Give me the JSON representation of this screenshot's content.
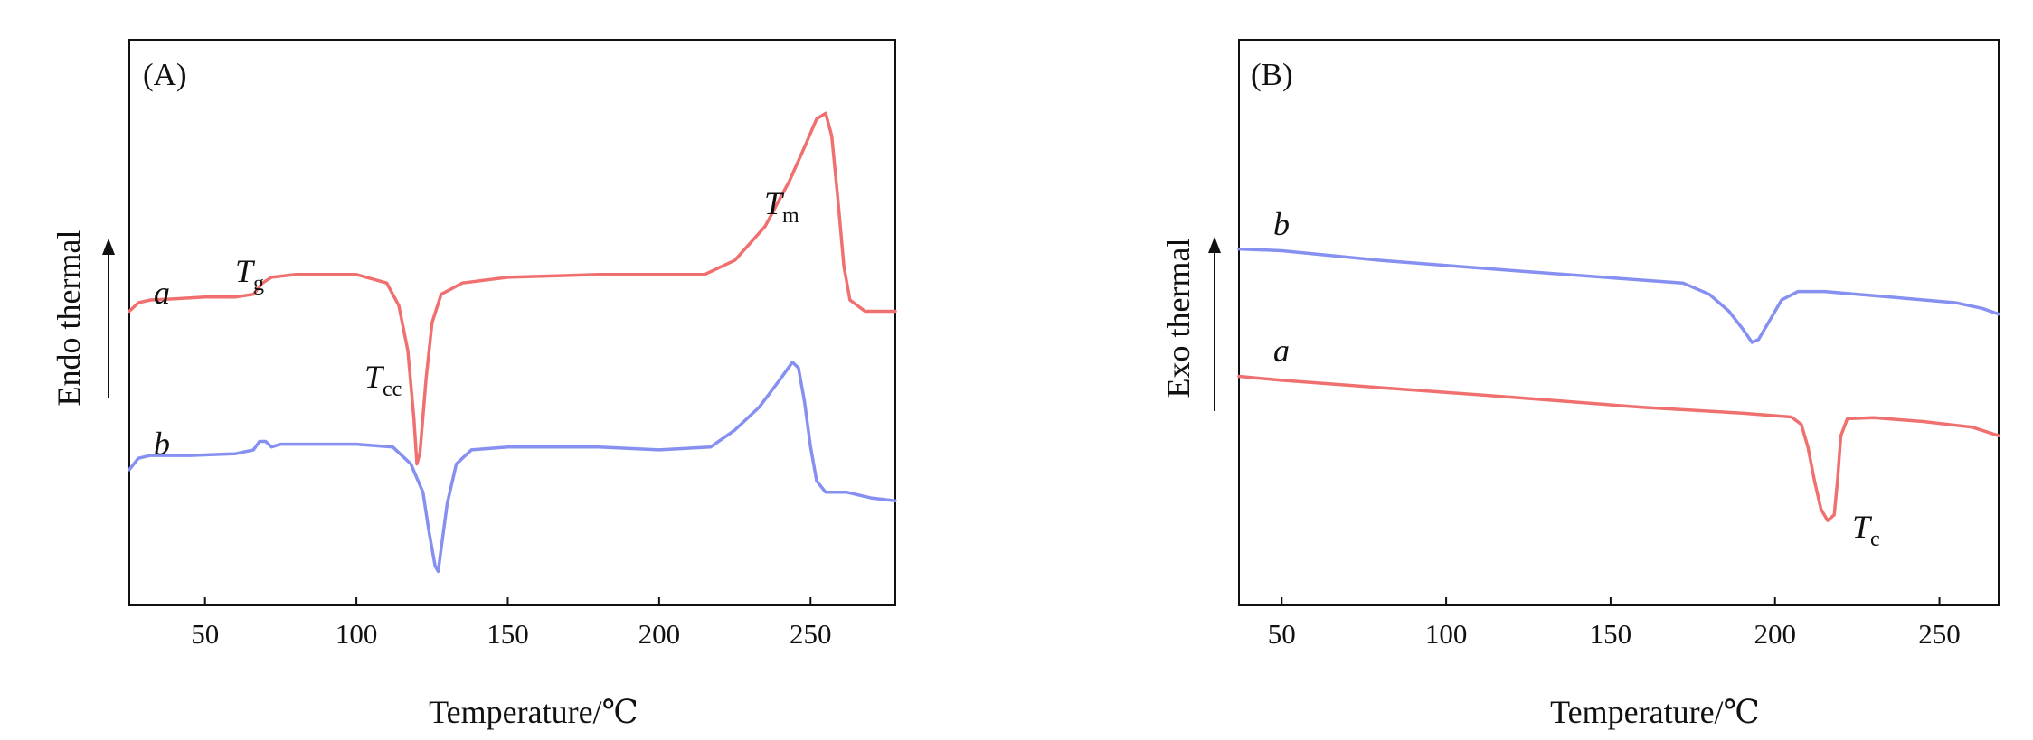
{
  "chart_data": [
    {
      "type": "line",
      "panel_label": "(A)",
      "xlabel": "Temperature/℃",
      "ylabel": "Endo thermal",
      "xlim": [
        25,
        278
      ],
      "x_ticks": [
        "50",
        "100",
        "150",
        "200",
        "250"
      ],
      "y_ticks": "none",
      "grid": false,
      "series": [
        {
          "name": "a",
          "color": "#f07070",
          "points": [
            [
              25,
              0.52
            ],
            [
              28,
              0.535
            ],
            [
              32,
              0.54
            ],
            [
              40,
              0.542
            ],
            [
              50,
              0.545
            ],
            [
              60,
              0.545
            ],
            [
              66,
              0.55
            ],
            [
              69,
              0.57
            ],
            [
              72,
              0.58
            ],
            [
              80,
              0.585
            ],
            [
              100,
              0.585
            ],
            [
              110,
              0.57
            ],
            [
              114,
              0.53
            ],
            [
              117,
              0.45
            ],
            [
              119,
              0.33
            ],
            [
              120,
              0.25
            ],
            [
              121,
              0.27
            ],
            [
              123,
              0.4
            ],
            [
              125,
              0.5
            ],
            [
              128,
              0.55
            ],
            [
              135,
              0.57
            ],
            [
              150,
              0.58
            ],
            [
              180,
              0.585
            ],
            [
              200,
              0.585
            ],
            [
              215,
              0.585
            ],
            [
              225,
              0.61
            ],
            [
              235,
              0.67
            ],
            [
              243,
              0.75
            ],
            [
              248,
              0.81
            ],
            [
              252,
              0.86
            ],
            [
              255,
              0.87
            ],
            [
              257,
              0.83
            ],
            [
              259,
              0.72
            ],
            [
              261,
              0.6
            ],
            [
              263,
              0.54
            ],
            [
              268,
              0.52
            ],
            [
              278,
              0.52
            ]
          ]
        },
        {
          "name": "b",
          "color": "#8590f0",
          "points": [
            [
              25,
              0.24
            ],
            [
              28,
              0.26
            ],
            [
              32,
              0.265
            ],
            [
              45,
              0.265
            ],
            [
              60,
              0.268
            ],
            [
              66,
              0.275
            ],
            [
              68,
              0.29
            ],
            [
              70,
              0.29
            ],
            [
              72,
              0.28
            ],
            [
              75,
              0.285
            ],
            [
              100,
              0.285
            ],
            [
              112,
              0.28
            ],
            [
              118,
              0.25
            ],
            [
              122,
              0.2
            ],
            [
              124,
              0.13
            ],
            [
              126,
              0.07
            ],
            [
              127,
              0.06
            ],
            [
              128,
              0.1
            ],
            [
              130,
              0.18
            ],
            [
              133,
              0.25
            ],
            [
              138,
              0.275
            ],
            [
              150,
              0.28
            ],
            [
              180,
              0.28
            ],
            [
              200,
              0.275
            ],
            [
              217,
              0.28
            ],
            [
              225,
              0.31
            ],
            [
              233,
              0.35
            ],
            [
              240,
              0.4
            ],
            [
              244,
              0.43
            ],
            [
              246,
              0.42
            ],
            [
              248,
              0.36
            ],
            [
              250,
              0.28
            ],
            [
              252,
              0.22
            ],
            [
              255,
              0.2
            ],
            [
              262,
              0.2
            ],
            [
              270,
              0.19
            ],
            [
              278,
              0.185
            ]
          ]
        }
      ],
      "annotations": [
        {
          "main": "T",
          "sub": "g"
        },
        {
          "main": "T",
          "sub": "cc"
        },
        {
          "main": "T",
          "sub": "m"
        }
      ]
    },
    {
      "type": "line",
      "panel_label": "(B)",
      "xlabel": "Temperature/℃",
      "ylabel": "Exo thermal",
      "xlim": [
        37,
        268
      ],
      "x_ticks": [
        "50",
        "100",
        "150",
        "200",
        "250"
      ],
      "y_ticks": "none",
      "grid": false,
      "series": [
        {
          "name": "b",
          "color": "#8590f0",
          "points": [
            [
              37,
              0.63
            ],
            [
              50,
              0.627
            ],
            [
              80,
              0.61
            ],
            [
              120,
              0.592
            ],
            [
              160,
              0.575
            ],
            [
              172,
              0.57
            ],
            [
              180,
              0.55
            ],
            [
              186,
              0.52
            ],
            [
              190,
              0.49
            ],
            [
              193,
              0.465
            ],
            [
              195,
              0.47
            ],
            [
              198,
              0.5
            ],
            [
              202,
              0.54
            ],
            [
              207,
              0.555
            ],
            [
              215,
              0.555
            ],
            [
              235,
              0.545
            ],
            [
              255,
              0.535
            ],
            [
              263,
              0.525
            ],
            [
              268,
              0.515
            ]
          ]
        },
        {
          "name": "a",
          "color": "#f07070",
          "points": [
            [
              37,
              0.405
            ],
            [
              50,
              0.398
            ],
            [
              80,
              0.385
            ],
            [
              120,
              0.368
            ],
            [
              160,
              0.35
            ],
            [
              190,
              0.34
            ],
            [
              205,
              0.333
            ],
            [
              208,
              0.32
            ],
            [
              210,
              0.28
            ],
            [
              212,
              0.22
            ],
            [
              214,
              0.17
            ],
            [
              216,
              0.15
            ],
            [
              218,
              0.16
            ],
            [
              219,
              0.22
            ],
            [
              220,
              0.3
            ],
            [
              222,
              0.33
            ],
            [
              230,
              0.332
            ],
            [
              245,
              0.325
            ],
            [
              260,
              0.315
            ],
            [
              268,
              0.3
            ]
          ]
        }
      ],
      "annotations": [
        {
          "main": "T",
          "sub": "c"
        }
      ]
    }
  ]
}
